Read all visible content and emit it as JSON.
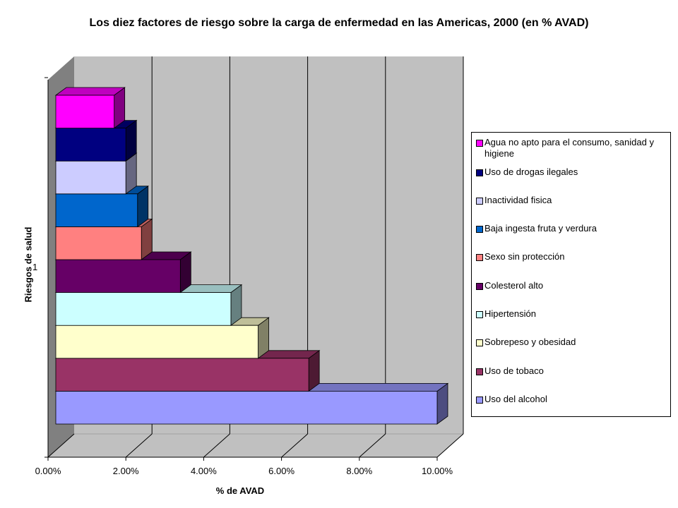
{
  "chart_data": {
    "type": "bar",
    "orientation": "horizontal",
    "title": "Los diez factores de riesgo sobre la carga de enfermedad en las Americas, 2000 (en % AVAD)",
    "xlabel": "% de AVAD",
    "ylabel": "Riesgos de salud",
    "category_tick": "1",
    "xlim": [
      0,
      0.1
    ],
    "x_ticks": [
      "0.00%",
      "2.00%",
      "4.00%",
      "6.00%",
      "8.00%",
      "10.00%"
    ],
    "grid": true,
    "legend_position": "right",
    "series": [
      {
        "name": "Uso del alcohol",
        "value": 0.098,
        "color": "#9999ff"
      },
      {
        "name": "Uso de tobaco",
        "value": 0.065,
        "color": "#993366"
      },
      {
        "name": "Sobrepeso y obesidad",
        "value": 0.052,
        "color": "#ffffcc"
      },
      {
        "name": "Hipertensión",
        "value": 0.045,
        "color": "#ccffff"
      },
      {
        "name": "Colesterol alto",
        "value": 0.032,
        "color": "#660066"
      },
      {
        "name": "Sexo sin protección",
        "value": 0.022,
        "color": "#ff8080"
      },
      {
        "name": "Baja ingesta fruta y verdura",
        "value": 0.021,
        "color": "#0066cc"
      },
      {
        "name": "Inactividad fisica",
        "value": 0.018,
        "color": "#ccccff"
      },
      {
        "name": "Uso de drogas ilegales",
        "value": 0.018,
        "color": "#000080"
      },
      {
        "name": "Agua no apto para el consumo, sanidad y higiene",
        "value": 0.015,
        "color": "#ff00ff"
      }
    ]
  }
}
